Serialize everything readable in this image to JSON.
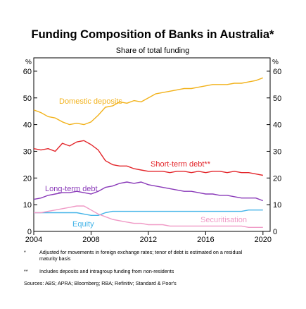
{
  "chart_data": {
    "type": "line",
    "title": "Funding Composition of Banks in Australia*",
    "subtitle": "Share of total funding",
    "unit_left": "%",
    "unit_right": "%",
    "xlim": [
      2004,
      2020.5
    ],
    "ylim": [
      0,
      65
    ],
    "x_ticks": [
      2004,
      2008,
      2012,
      2016,
      2020
    ],
    "y_ticks": [
      0,
      10,
      20,
      30,
      40,
      50,
      60
    ],
    "grid": false,
    "legend": "inline labels",
    "series": [
      {
        "name": "Domestic deposits",
        "color": "#f2b21b",
        "points": [
          [
            2004.0,
            45.5
          ],
          [
            2004.5,
            44.5
          ],
          [
            2005.0,
            43.0
          ],
          [
            2005.5,
            42.5
          ],
          [
            2006.0,
            41.0
          ],
          [
            2006.5,
            40.0
          ],
          [
            2007.0,
            40.5
          ],
          [
            2007.5,
            40.0
          ],
          [
            2008.0,
            41.0
          ],
          [
            2008.5,
            43.5
          ],
          [
            2009.0,
            46.5
          ],
          [
            2009.5,
            47.0
          ],
          [
            2010.0,
            48.5
          ],
          [
            2010.5,
            48.0
          ],
          [
            2011.0,
            49.0
          ],
          [
            2011.5,
            48.5
          ],
          [
            2012.0,
            50.0
          ],
          [
            2012.5,
            51.5
          ],
          [
            2013.0,
            52.0
          ],
          [
            2013.5,
            52.5
          ],
          [
            2014.0,
            53.0
          ],
          [
            2014.5,
            53.5
          ],
          [
            2015.0,
            53.5
          ],
          [
            2015.5,
            54.0
          ],
          [
            2016.0,
            54.5
          ],
          [
            2016.5,
            55.0
          ],
          [
            2017.0,
            55.0
          ],
          [
            2017.5,
            55.0
          ],
          [
            2018.0,
            55.5
          ],
          [
            2018.5,
            55.5
          ],
          [
            2019.0,
            56.0
          ],
          [
            2019.5,
            56.5
          ],
          [
            2020.0,
            57.5
          ]
        ]
      },
      {
        "name": "Short-term debt**",
        "color": "#e3262b",
        "points": [
          [
            2004.0,
            31.0
          ],
          [
            2004.5,
            30.5
          ],
          [
            2005.0,
            31.0
          ],
          [
            2005.5,
            30.0
          ],
          [
            2006.0,
            33.0
          ],
          [
            2006.5,
            32.0
          ],
          [
            2007.0,
            33.5
          ],
          [
            2007.5,
            34.0
          ],
          [
            2008.0,
            32.5
          ],
          [
            2008.5,
            30.5
          ],
          [
            2009.0,
            26.5
          ],
          [
            2009.5,
            25.0
          ],
          [
            2010.0,
            24.5
          ],
          [
            2010.5,
            24.5
          ],
          [
            2011.0,
            23.5
          ],
          [
            2011.5,
            23.0
          ],
          [
            2012.0,
            22.5
          ],
          [
            2012.5,
            22.5
          ],
          [
            2013.0,
            22.5
          ],
          [
            2013.5,
            22.0
          ],
          [
            2014.0,
            22.5
          ],
          [
            2014.5,
            22.5
          ],
          [
            2015.0,
            22.0
          ],
          [
            2015.5,
            22.5
          ],
          [
            2016.0,
            22.0
          ],
          [
            2016.5,
            22.5
          ],
          [
            2017.0,
            22.5
          ],
          [
            2017.5,
            22.0
          ],
          [
            2018.0,
            22.5
          ],
          [
            2018.5,
            22.0
          ],
          [
            2019.0,
            22.0
          ],
          [
            2019.5,
            21.5
          ],
          [
            2020.0,
            21.0
          ]
        ]
      },
      {
        "name": "Long-term debt",
        "color": "#8a3ab9",
        "points": [
          [
            2004.0,
            12.0
          ],
          [
            2004.5,
            12.5
          ],
          [
            2005.0,
            13.5
          ],
          [
            2005.5,
            14.0
          ],
          [
            2006.0,
            14.5
          ],
          [
            2006.5,
            14.5
          ],
          [
            2007.0,
            15.0
          ],
          [
            2007.5,
            14.5
          ],
          [
            2008.0,
            14.0
          ],
          [
            2008.5,
            15.0
          ],
          [
            2009.0,
            16.5
          ],
          [
            2009.5,
            17.0
          ],
          [
            2010.0,
            18.0
          ],
          [
            2010.5,
            18.5
          ],
          [
            2011.0,
            18.0
          ],
          [
            2011.5,
            18.5
          ],
          [
            2012.0,
            17.5
          ],
          [
            2012.5,
            17.0
          ],
          [
            2013.0,
            16.5
          ],
          [
            2013.5,
            16.0
          ],
          [
            2014.0,
            15.5
          ],
          [
            2014.5,
            15.0
          ],
          [
            2015.0,
            15.0
          ],
          [
            2015.5,
            14.5
          ],
          [
            2016.0,
            14.0
          ],
          [
            2016.5,
            14.0
          ],
          [
            2017.0,
            13.5
          ],
          [
            2017.5,
            13.5
          ],
          [
            2018.0,
            13.0
          ],
          [
            2018.5,
            12.5
          ],
          [
            2019.0,
            12.5
          ],
          [
            2019.5,
            12.5
          ],
          [
            2020.0,
            11.5
          ]
        ]
      },
      {
        "name": "Equity",
        "color": "#44b4e8",
        "points": [
          [
            2004.0,
            7.0
          ],
          [
            2004.5,
            7.0
          ],
          [
            2005.0,
            7.0
          ],
          [
            2005.5,
            7.0
          ],
          [
            2006.0,
            7.0
          ],
          [
            2006.5,
            7.0
          ],
          [
            2007.0,
            7.0
          ],
          [
            2007.5,
            6.5
          ],
          [
            2008.0,
            6.0
          ],
          [
            2008.5,
            6.0
          ],
          [
            2009.0,
            7.0
          ],
          [
            2009.5,
            7.5
          ],
          [
            2010.0,
            7.5
          ],
          [
            2010.5,
            7.5
          ],
          [
            2011.0,
            7.5
          ],
          [
            2011.5,
            7.5
          ],
          [
            2012.0,
            7.5
          ],
          [
            2012.5,
            7.5
          ],
          [
            2013.0,
            7.5
          ],
          [
            2013.5,
            7.5
          ],
          [
            2014.0,
            7.5
          ],
          [
            2014.5,
            7.5
          ],
          [
            2015.0,
            7.5
          ],
          [
            2015.5,
            7.5
          ],
          [
            2016.0,
            7.5
          ],
          [
            2016.5,
            7.5
          ],
          [
            2017.0,
            7.5
          ],
          [
            2017.5,
            7.5
          ],
          [
            2018.0,
            7.5
          ],
          [
            2018.5,
            7.5
          ],
          [
            2019.0,
            8.0
          ],
          [
            2019.5,
            8.0
          ],
          [
            2020.0,
            8.0
          ]
        ]
      },
      {
        "name": "Securitisation",
        "color": "#f09ac6",
        "points": [
          [
            2004.0,
            7.0
          ],
          [
            2004.5,
            7.0
          ],
          [
            2005.0,
            7.5
          ],
          [
            2005.5,
            8.0
          ],
          [
            2006.0,
            8.5
          ],
          [
            2006.5,
            9.0
          ],
          [
            2007.0,
            9.5
          ],
          [
            2007.5,
            9.5
          ],
          [
            2008.0,
            8.0
          ],
          [
            2008.5,
            6.5
          ],
          [
            2009.0,
            5.5
          ],
          [
            2009.5,
            4.5
          ],
          [
            2010.0,
            4.0
          ],
          [
            2010.5,
            3.5
          ],
          [
            2011.0,
            3.0
          ],
          [
            2011.5,
            3.0
          ],
          [
            2012.0,
            2.5
          ],
          [
            2012.5,
            2.5
          ],
          [
            2013.0,
            2.5
          ],
          [
            2013.5,
            2.0
          ],
          [
            2014.0,
            2.0
          ],
          [
            2014.5,
            2.0
          ],
          [
            2015.0,
            2.0
          ],
          [
            2015.5,
            2.0
          ],
          [
            2016.0,
            2.0
          ],
          [
            2016.5,
            2.0
          ],
          [
            2017.0,
            2.0
          ],
          [
            2017.5,
            2.0
          ],
          [
            2018.0,
            2.0
          ],
          [
            2018.5,
            2.0
          ],
          [
            2019.0,
            1.5
          ],
          [
            2019.5,
            1.5
          ],
          [
            2020.0,
            1.5
          ]
        ]
      }
    ]
  },
  "labels": {
    "domestic": "Domestic deposits",
    "short": "Short-term debt**",
    "long": "Long-term debt",
    "equity": "Equity",
    "securitisation": "Securitisation"
  },
  "notes": {
    "note1_mark": "*",
    "note1_text": "Adjusted for movements in foreign exchange rates; tenor of debt is estimated on a residual maturity basis",
    "note2_mark": "**",
    "note2_text": "Includes deposits and intragroup funding from non-residents",
    "sources": "Sources: ABS; APRA; Bloomberg; RBA; Refinitiv; Standard & Poor's"
  }
}
